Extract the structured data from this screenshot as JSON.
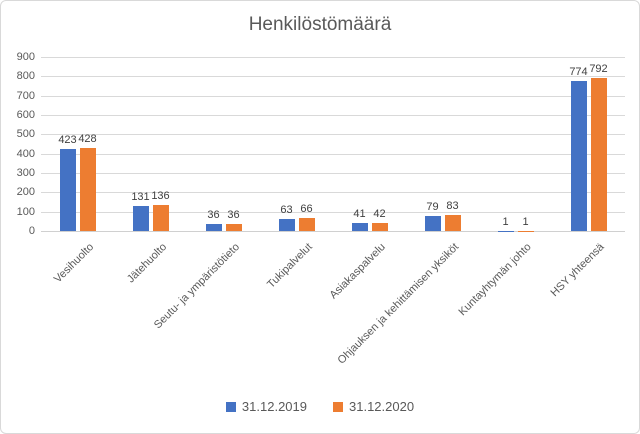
{
  "chart_data": {
    "type": "bar",
    "title": "Henkilöstömäärä",
    "categories": [
      "Vesihuolto",
      "Jätehuolto",
      "Seutu- ja ympäristötieto",
      "Tukipalvelut",
      "Asiakaspalvelu",
      "Ohjauksen ja kehittämisen yksiköt",
      "Kuntayhtymän johto",
      "HSY yhteensä"
    ],
    "series": [
      {
        "name": "31.12.2019",
        "color": "#4472c4",
        "values": [
          423,
          131,
          36,
          63,
          41,
          79,
          1,
          774
        ]
      },
      {
        "name": "31.12.2020",
        "color": "#ed7d31",
        "values": [
          428,
          136,
          36,
          66,
          42,
          83,
          1,
          792
        ]
      }
    ],
    "ylim": [
      0,
      900
    ],
    "ytick_step": 100,
    "grid": true,
    "data_labels": true,
    "legend_position": "bottom",
    "colors": {
      "grid": "#d9d9d9",
      "axis_text": "#595959",
      "data_label_text": "#404040",
      "title_text": "#595959",
      "frame_border": "#d9d9d9"
    }
  }
}
